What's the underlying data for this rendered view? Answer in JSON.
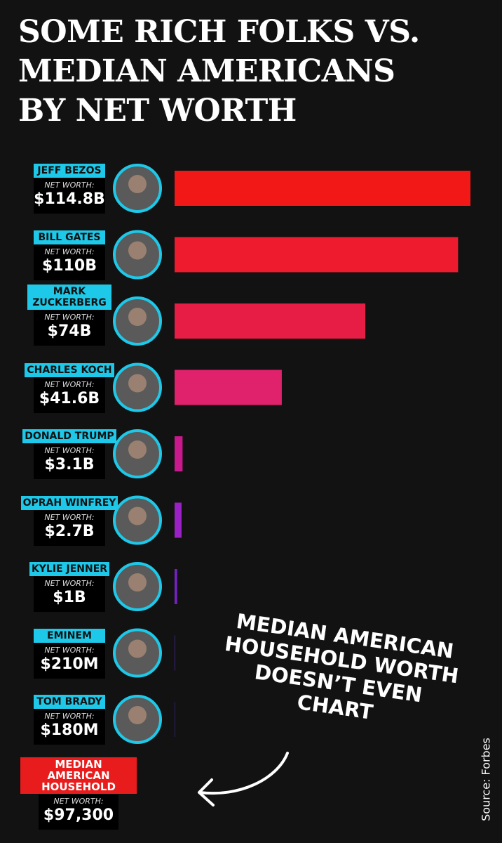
{
  "chart_data": {
    "type": "bar",
    "title_lines": [
      "SOME RICH FOLKS VS.",
      "MEDIAN AMERICANS",
      "BY NET WORTH"
    ],
    "categories": [
      "JEFF BEZOS",
      "BILL GATES",
      "MARK ZUCKERBERG",
      "CHARLES KOCH",
      "DONALD TRUMP",
      "OPRAH WINFREY",
      "KYLIE JENNER",
      "EMINEM",
      "TOM BRADY",
      "MEDIAN AMERICAN HOUSEHOLD"
    ],
    "values": [
      114800000000,
      110000000000,
      74000000000,
      41600000000,
      3100000000,
      2700000000,
      1000000000,
      210000000,
      180000000,
      97300
    ],
    "value_labels": [
      "$114.8B",
      "$110B",
      "$74B",
      "$41.6B",
      "$3.1B",
      "$2.7B",
      "$1B",
      "$210M",
      "$180M",
      "$97,300"
    ],
    "colors": [
      "#f21818",
      "#ee1b2e",
      "#e81d46",
      "#e0216c",
      "#c81a8c",
      "#9a22c4",
      "#7422c0",
      "#4a2aa0",
      "#3a2a8c",
      "#e81c1c"
    ],
    "value_caption": "NET WORTH:",
    "annotation_lines": [
      "MEDIAN AMERICAN",
      "HOUSEHOLD WORTH",
      "DOESN’T EVEN",
      "CHART"
    ],
    "source": "Source: Forbes"
  }
}
